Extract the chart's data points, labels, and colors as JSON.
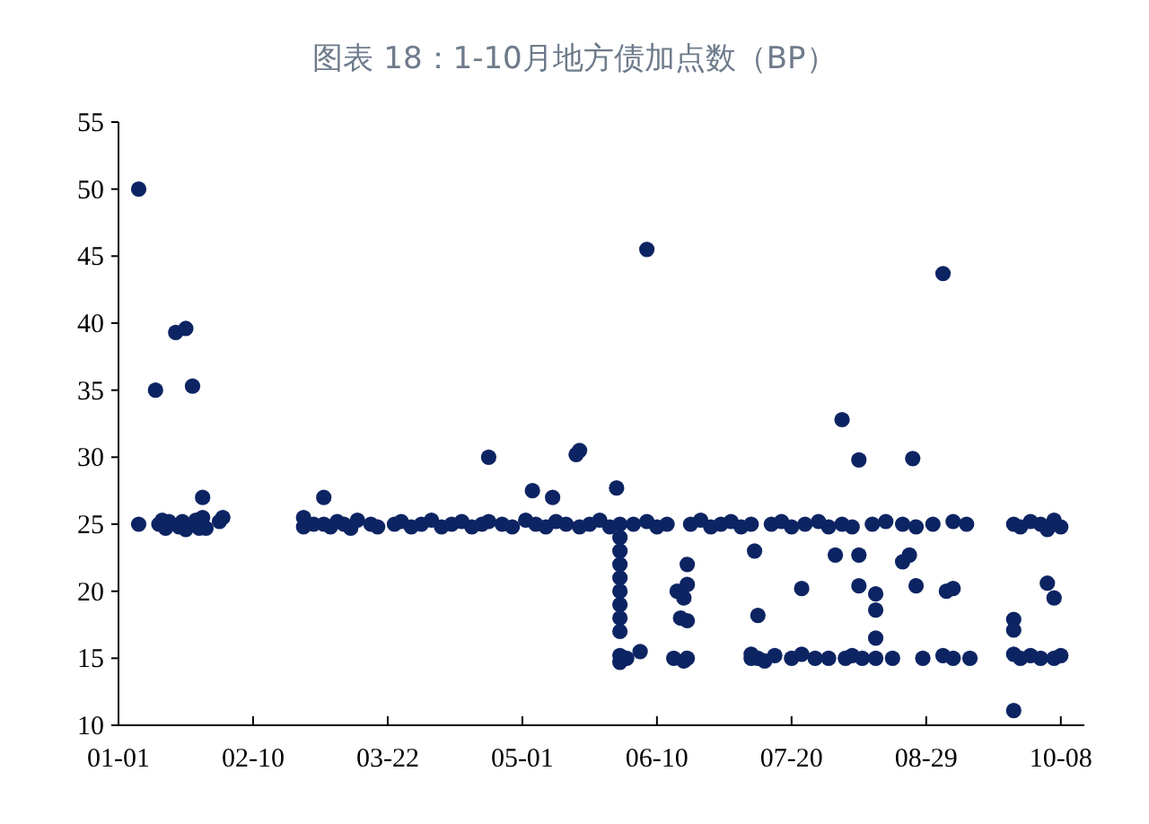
{
  "chart_data": {
    "type": "scatter",
    "title": "图表 18：1-10月地方债加点数（BP）",
    "color": "#0d2463",
    "marker": "circle",
    "x": [
      "--01-07",
      "--01-07",
      "--01-12",
      "--01-13",
      "--01-14",
      "--01-15",
      "--01-16",
      "--01-18",
      "--01-19",
      "--01-20",
      "--01-21",
      "--01-21",
      "--01-23",
      "--01-24",
      "--01-25",
      "--01-26",
      "--01-26",
      "--01-27",
      "--01-31",
      "--02-01",
      "--02-25",
      "--02-25",
      "--02-28",
      "--03-03",
      "--03-03",
      "--03-05",
      "--03-07",
      "--03-09",
      "--03-11",
      "--03-13",
      "--03-17",
      "--03-19",
      "--03-24",
      "--03-26",
      "--03-29",
      "--04-01",
      "--04-04",
      "--04-07",
      "--04-10",
      "--04-13",
      "--04-16",
      "--04-19",
      "--04-21",
      "--04-21",
      "--04-25",
      "--04-28",
      "--05-02",
      "--05-04",
      "--05-05",
      "--05-08",
      "--05-10",
      "--05-11",
      "--05-14",
      "--05-17",
      "--05-18",
      "--05-18",
      "--05-21",
      "--05-24",
      "--05-27",
      "--05-29",
      "--05-30",
      "--05-30",
      "--05-30",
      "--05-30",
      "--05-30",
      "--05-30",
      "--05-30",
      "--05-30",
      "--05-30",
      "--05-30",
      "--05-30",
      "--06-01",
      "--06-03",
      "--06-05",
      "--06-07",
      "--06-07",
      "--06-10",
      "--06-13",
      "--06-15",
      "--06-16",
      "--06-17",
      "--06-18",
      "--06-18",
      "--06-19",
      "--06-19",
      "--06-19",
      "--06-19",
      "--06-20",
      "--06-23",
      "--06-26",
      "--06-29",
      "--07-02",
      "--07-05",
      "--07-08",
      "--07-08",
      "--07-08",
      "--07-09",
      "--07-10",
      "--07-10",
      "--07-12",
      "--07-14",
      "--07-15",
      "--07-17",
      "--07-20",
      "--07-20",
      "--07-23",
      "--07-23",
      "--07-24",
      "--07-27",
      "--07-28",
      "--07-31",
      "--07-31",
      "--08-02",
      "--08-04",
      "--08-04",
      "--08-05",
      "--08-07",
      "--08-07",
      "--08-09",
      "--08-09",
      "--08-09",
      "--08-10",
      "--08-13",
      "--08-14",
      "--08-14",
      "--08-14",
      "--08-14",
      "--08-17",
      "--08-19",
      "--08-22",
      "--08-22",
      "--08-24",
      "--08-25",
      "--08-26",
      "--08-26",
      "--08-28",
      "--08-31",
      "--09-03",
      "--09-03",
      "--09-04",
      "--09-06",
      "--09-06",
      "--09-06",
      "--09-10",
      "--09-11",
      "--09-24",
      "--09-24",
      "--09-24",
      "--09-24",
      "--09-24",
      "--09-26",
      "--09-26",
      "--09-29",
      "--09-29",
      "--10-02",
      "--10-02",
      "--10-04",
      "--10-04",
      "--10-06",
      "--10-06",
      "--10-06",
      "--10-08",
      "--10-08"
    ],
    "values": [
      50,
      25,
      35,
      25,
      25.3,
      24.7,
      25.2,
      39.3,
      24.8,
      25.2,
      39.6,
      24.6,
      35.3,
      25.3,
      24.7,
      27,
      25.5,
      24.7,
      25.2,
      25.5,
      25.5,
      24.8,
      25,
      27,
      25,
      24.8,
      25.2,
      25,
      24.7,
      25.3,
      25,
      24.8,
      25,
      25.2,
      24.8,
      25,
      25.3,
      24.8,
      25,
      25.2,
      24.8,
      25,
      30,
      25.2,
      25,
      24.8,
      25.3,
      27.5,
      25,
      24.8,
      27,
      25.2,
      25,
      30.2,
      30.5,
      24.8,
      25,
      25.3,
      24.8,
      27.7,
      25,
      24,
      23,
      22,
      21,
      20,
      19,
      18,
      17,
      15.2,
      14.7,
      15,
      25,
      15.5,
      45.5,
      25.2,
      24.8,
      25,
      15,
      20,
      18,
      19.5,
      14.8,
      22,
      20.5,
      17.8,
      15,
      25,
      25.3,
      24.8,
      25,
      25.2,
      24.8,
      25,
      15,
      15.3,
      23,
      18.2,
      15,
      14.8,
      25,
      15.2,
      25.2,
      15,
      24.8,
      20.2,
      15.3,
      25,
      15,
      25.2,
      15,
      24.8,
      22.7,
      32.8,
      25,
      15,
      24.8,
      15.2,
      29.8,
      22.7,
      20.4,
      15,
      25,
      19.8,
      18.6,
      16.5,
      15,
      25.2,
      15,
      22.2,
      25,
      22.7,
      29.9,
      20.4,
      24.8,
      15,
      25,
      43.7,
      15.2,
      20,
      20.2,
      25.2,
      15,
      25,
      15,
      25,
      17.9,
      17.1,
      11.1,
      15.3,
      24.8,
      15,
      25.2,
      15.2,
      25,
      15,
      20.6,
      24.6,
      19.5,
      25.3,
      15,
      24.8,
      15.2
    ],
    "xlim": [
      "--01-01",
      "--10-15"
    ],
    "xticks": [
      {
        "value": "--01-01",
        "label": "01-01"
      },
      {
        "value": "--02-10",
        "label": "02-10"
      },
      {
        "value": "--03-22",
        "label": "03-22"
      },
      {
        "value": "--05-01",
        "label": "05-01"
      },
      {
        "value": "--06-10",
        "label": "06-10"
      },
      {
        "value": "--07-20",
        "label": "07-20"
      },
      {
        "value": "--08-29",
        "label": "08-29"
      },
      {
        "value": "--10-08",
        "label": "10-08"
      }
    ],
    "ylim": [
      10,
      55
    ],
    "yticks": [
      10,
      15,
      20,
      25,
      30,
      35,
      40,
      45,
      50,
      55
    ]
  }
}
